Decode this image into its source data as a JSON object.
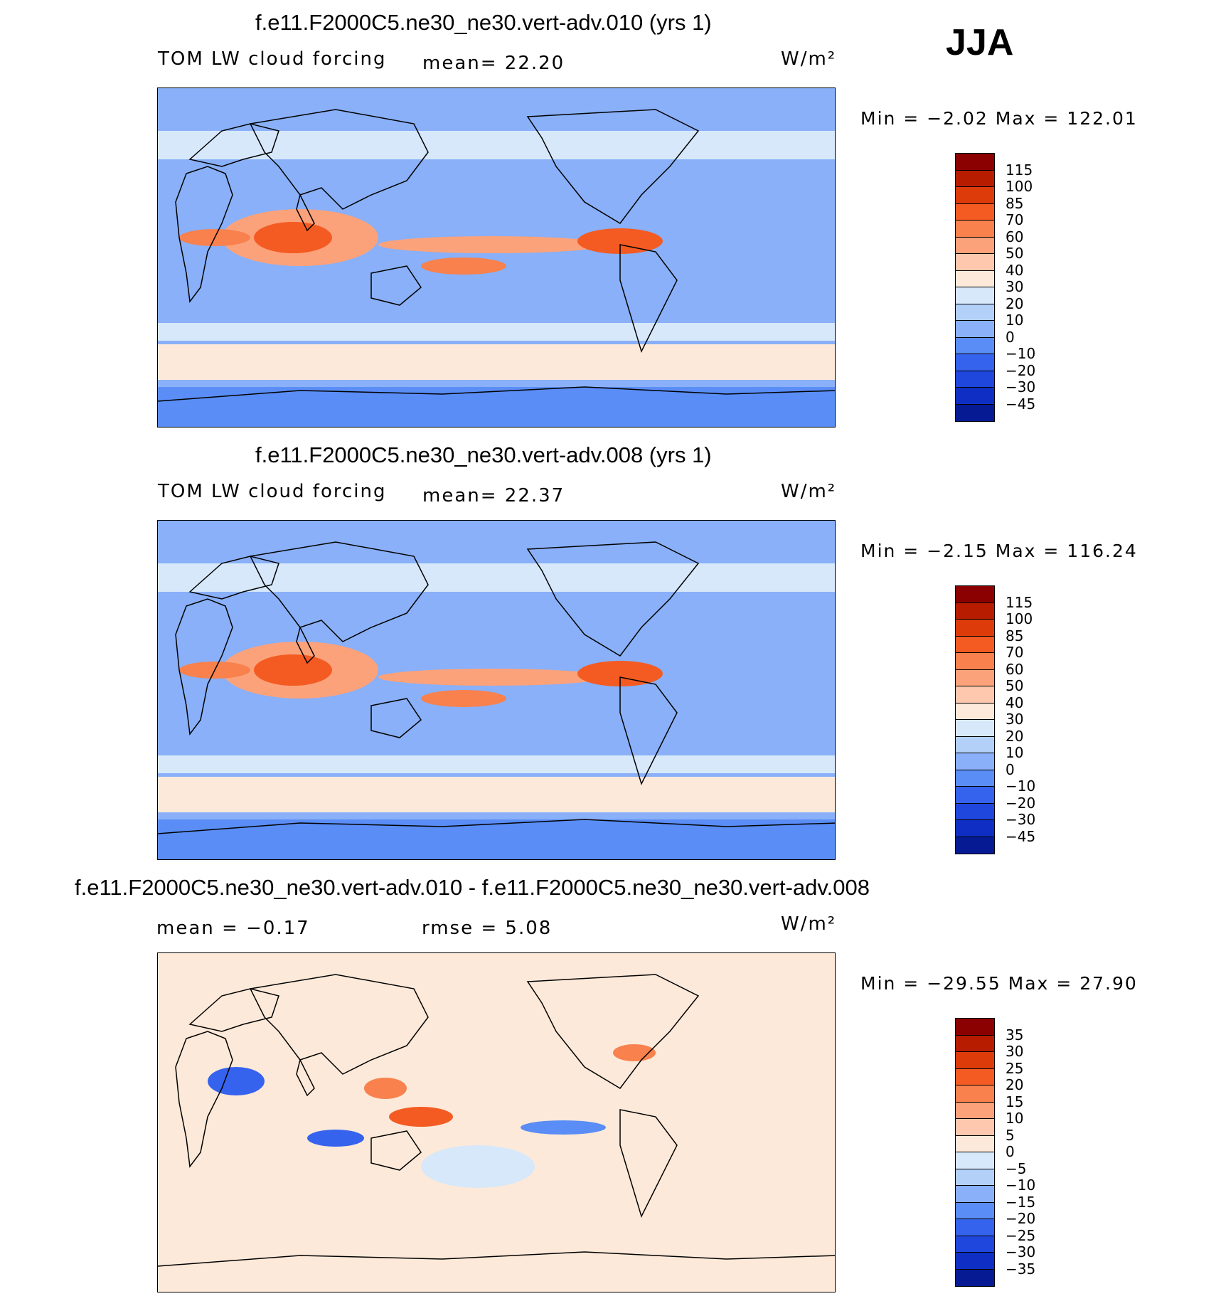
{
  "season": "JJA",
  "panels": [
    {
      "title": "f.e11.F2000C5.ne30_ne30.vert-adv.010 (yrs 1)",
      "left_label": "TOM LW cloud forcing",
      "center_label": "mean=   22.20",
      "units": "W/m²",
      "minmax": "Min =   −2.02 Max =  122.01",
      "colorbar": {
        "labels": [
          "115",
          "100",
          "85",
          "70",
          "60",
          "50",
          "40",
          "30",
          "20",
          "10",
          "0",
          "−10",
          "−20",
          "−30",
          "−45"
        ],
        "colors": [
          "#8b0000",
          "#b81c00",
          "#de3b0b",
          "#f45b22",
          "#f8814d",
          "#fba27b",
          "#fdc8ad",
          "#fde9d9",
          "#d6e8fa",
          "#b3d0f9",
          "#89b0f8",
          "#5a8df5",
          "#3563ee",
          "#1f46dd",
          "#0f2fc4",
          "#061a94"
        ]
      },
      "map_variant": "model"
    },
    {
      "title": "f.e11.F2000C5.ne30_ne30.vert-adv.008 (yrs 1)",
      "left_label": "TOM LW cloud forcing",
      "center_label": "mean=   22.37",
      "units": "W/m²",
      "minmax": "Min =   −2.15 Max =  116.24",
      "colorbar": {
        "labels": [
          "115",
          "100",
          "85",
          "70",
          "60",
          "50",
          "40",
          "30",
          "20",
          "10",
          "0",
          "−10",
          "−20",
          "−30",
          "−45"
        ],
        "colors": [
          "#8b0000",
          "#b81c00",
          "#de3b0b",
          "#f45b22",
          "#f8814d",
          "#fba27b",
          "#fdc8ad",
          "#fde9d9",
          "#d6e8fa",
          "#b3d0f9",
          "#89b0f8",
          "#5a8df5",
          "#3563ee",
          "#1f46dd",
          "#0f2fc4",
          "#061a94"
        ]
      },
      "map_variant": "model"
    },
    {
      "title": "f.e11.F2000C5.ne30_ne30.vert-adv.010 - f.e11.F2000C5.ne30_ne30.vert-adv.008",
      "left_label": "mean =   −0.17",
      "center_label": "rmse =    5.08",
      "units": "W/m²",
      "minmax": "Min = −29.55 Max =   27.90",
      "colorbar": {
        "labels": [
          "35",
          "30",
          "25",
          "20",
          "15",
          "10",
          "5",
          "0",
          "−5",
          "−10",
          "−15",
          "−20",
          "−25",
          "−30",
          "−35"
        ],
        "colors": [
          "#8b0000",
          "#b81c00",
          "#de3b0b",
          "#f45b22",
          "#f8814d",
          "#fba27b",
          "#fdc8ad",
          "#fde9d9",
          "#d6e8fa",
          "#b3d0f9",
          "#89b0f8",
          "#5a8df5",
          "#3563ee",
          "#1f46dd",
          "#0f2fc4",
          "#061a94"
        ]
      },
      "map_variant": "difference"
    }
  ]
}
